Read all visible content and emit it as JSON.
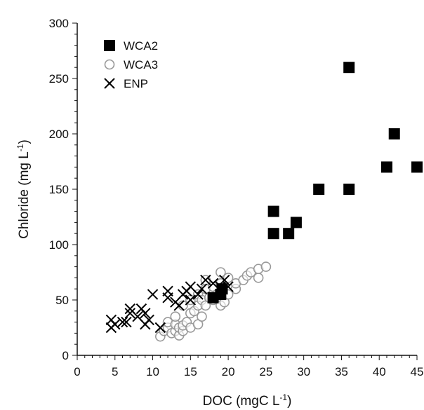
{
  "chart_data": {
    "type": "scatter",
    "xlabel": "DOC (mgC L",
    "xlabel_sup": "-1",
    "xlabel_tail": ")",
    "ylabel": "Chloride (mg L",
    "ylabel_sup": "-1",
    "ylabel_tail": ")",
    "xlim": [
      0,
      45
    ],
    "ylim": [
      0,
      300
    ],
    "xticks": [
      "0",
      "5",
      "10",
      "15",
      "20",
      "25",
      "30",
      "35",
      "40",
      "45"
    ],
    "yticks": [
      "0",
      "50",
      "100",
      "150",
      "200",
      "250",
      "300"
    ],
    "grid": false,
    "legend_position": "top-left",
    "series": [
      {
        "name": "WCA2",
        "marker": "filled-square",
        "color": "#000000",
        "points": [
          [
            18,
            52
          ],
          [
            19,
            55
          ],
          [
            19.2,
            60
          ],
          [
            26,
            130
          ],
          [
            26,
            110
          ],
          [
            28,
            110
          ],
          [
            29,
            120
          ],
          [
            32,
            150
          ],
          [
            36,
            150
          ],
          [
            36,
            260
          ],
          [
            41,
            170
          ],
          [
            42,
            200
          ],
          [
            45,
            170
          ]
        ]
      },
      {
        "name": "WCA3",
        "marker": "open-circle",
        "color": "#999999",
        "points": [
          [
            11,
            17
          ],
          [
            11.5,
            22
          ],
          [
            12,
            25
          ],
          [
            12,
            30
          ],
          [
            12.5,
            20
          ],
          [
            13,
            22
          ],
          [
            13,
            28
          ],
          [
            13,
            35
          ],
          [
            13.5,
            18
          ],
          [
            13.5,
            25
          ],
          [
            14,
            22
          ],
          [
            14,
            27
          ],
          [
            14,
            45
          ],
          [
            14.5,
            30
          ],
          [
            15,
            25
          ],
          [
            15,
            38
          ],
          [
            15,
            50
          ],
          [
            15.5,
            40
          ],
          [
            16,
            28
          ],
          [
            16,
            45
          ],
          [
            16,
            55
          ],
          [
            16.5,
            35
          ],
          [
            16.5,
            50
          ],
          [
            17,
            45
          ],
          [
            17,
            60
          ],
          [
            17,
            68
          ],
          [
            17.5,
            52
          ],
          [
            18,
            50
          ],
          [
            18,
            62
          ],
          [
            18.5,
            55
          ],
          [
            19,
            45
          ],
          [
            19,
            65
          ],
          [
            19,
            75
          ],
          [
            19.5,
            48
          ],
          [
            20,
            55
          ],
          [
            20,
            70
          ],
          [
            21,
            60
          ],
          [
            21,
            65
          ],
          [
            22,
            68
          ],
          [
            22.5,
            72
          ],
          [
            23,
            75
          ],
          [
            24,
            70
          ],
          [
            24,
            78
          ],
          [
            25,
            80
          ]
        ]
      },
      {
        "name": "ENP",
        "marker": "x",
        "color": "#000000",
        "points": [
          [
            4.5,
            25
          ],
          [
            4.5,
            32
          ],
          [
            5,
            28
          ],
          [
            6,
            30
          ],
          [
            6.5,
            30
          ],
          [
            7,
            38
          ],
          [
            7,
            42
          ],
          [
            8,
            35
          ],
          [
            8.5,
            42
          ],
          [
            9,
            28
          ],
          [
            9,
            38
          ],
          [
            9.5,
            32
          ],
          [
            10,
            55
          ],
          [
            11,
            25
          ],
          [
            12,
            52
          ],
          [
            12,
            58
          ],
          [
            13,
            48
          ],
          [
            13.5,
            45
          ],
          [
            14,
            55
          ],
          [
            14.5,
            58
          ],
          [
            15,
            50
          ],
          [
            15,
            62
          ],
          [
            16,
            55
          ],
          [
            16.5,
            60
          ],
          [
            17,
            68
          ],
          [
            18,
            65
          ],
          [
            19,
            62
          ],
          [
            19.5,
            68
          ],
          [
            20,
            62
          ]
        ]
      }
    ]
  }
}
